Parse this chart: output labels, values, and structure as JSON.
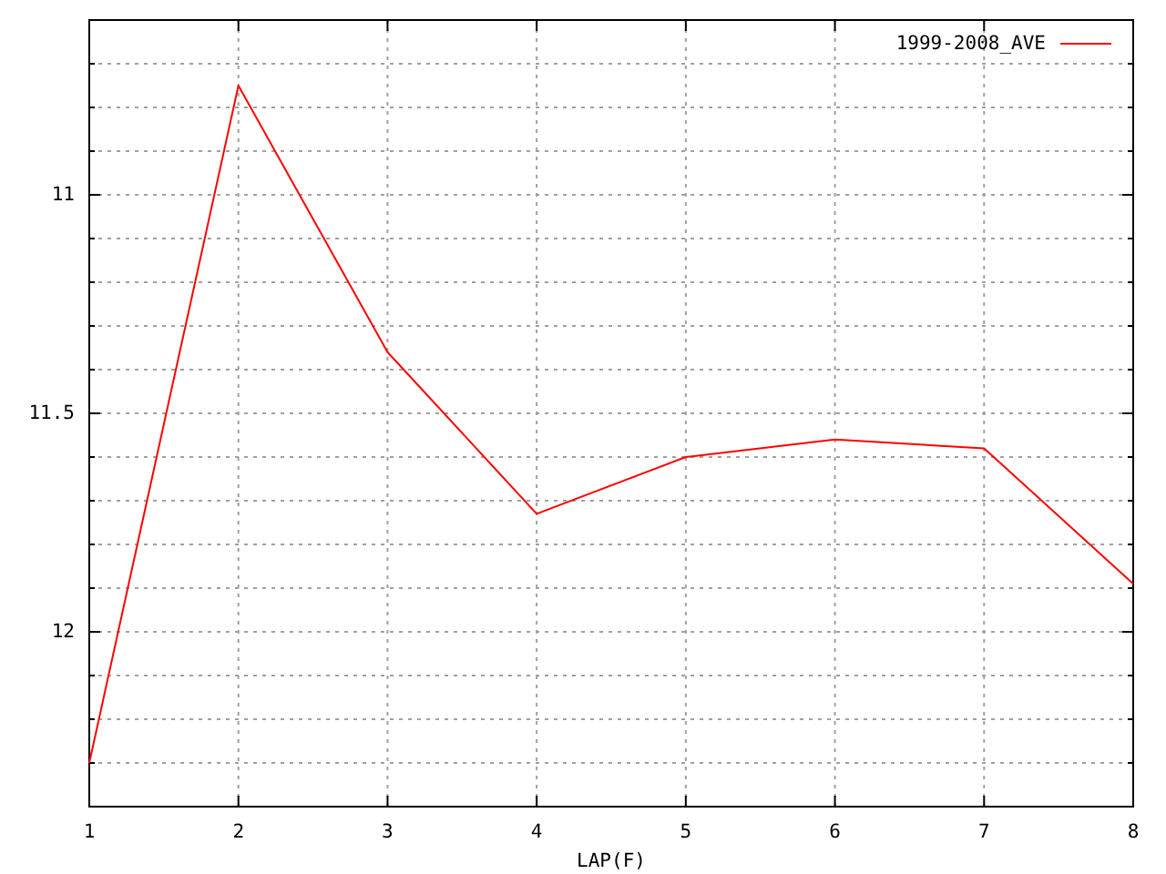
{
  "chart_data": {
    "type": "line",
    "xlabel": "LAP(F)",
    "x": [
      1,
      2,
      3,
      4,
      5,
      6,
      7,
      8
    ],
    "series": [
      {
        "name": "1999-2008_AVE",
        "color": "#ff0000",
        "values": [
          12.3,
          10.75,
          11.36,
          11.73,
          11.6,
          11.56,
          11.58,
          11.89
        ]
      }
    ],
    "xlim": [
      1,
      8
    ],
    "xticks": [
      1,
      2,
      3,
      4,
      5,
      6,
      7,
      8
    ],
    "ylim": [
      12.4,
      10.6
    ],
    "yticks": [
      {
        "value": 10.7,
        "label": null
      },
      {
        "value": 10.8,
        "label": null
      },
      {
        "value": 10.9,
        "label": null
      },
      11,
      {
        "value": 11.1,
        "label": null
      },
      {
        "value": 11.2,
        "label": null
      },
      {
        "value": 11.3,
        "label": null
      },
      {
        "value": 11.4,
        "label": null
      },
      11.5,
      {
        "value": 11.6,
        "label": null
      },
      {
        "value": 11.7,
        "label": null
      },
      {
        "value": 11.8,
        "label": null
      },
      {
        "value": 11.9,
        "label": null
      },
      12,
      {
        "value": 12.1,
        "label": null
      },
      {
        "value": 12.2,
        "label": null
      },
      {
        "value": 12.3,
        "label": null
      }
    ],
    "grid": true,
    "legend": "top right"
  }
}
